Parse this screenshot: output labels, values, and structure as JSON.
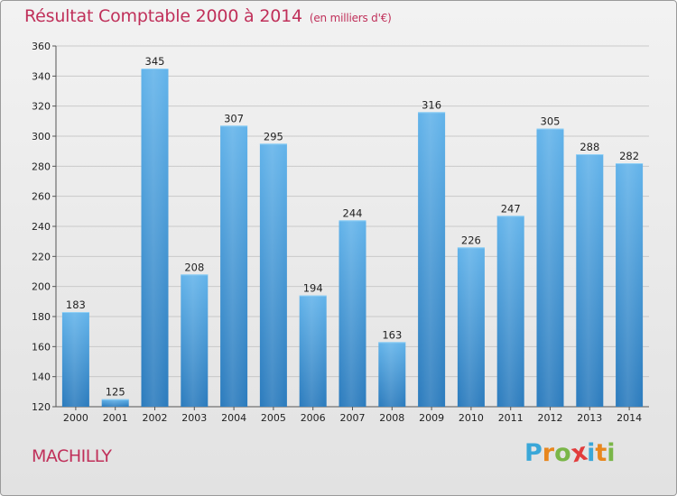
{
  "title": "Résultat Comptable 2000 à 2014",
  "subtitle": "(en milliers d'€)",
  "commune": "MACHILLY",
  "logo": {
    "letters": [
      "P",
      "r",
      "o",
      "x",
      "i",
      "t",
      "i"
    ],
    "colors": [
      "#3aa7d8",
      "#e8871e",
      "#7ab648",
      "#e23c3c",
      "#3aa7d8",
      "#e8871e",
      "#7ab648"
    ]
  },
  "colors": {
    "bar_top": "#62b3ea",
    "bar_bottom": "#2b7bbd",
    "accent": "#c0305a"
  },
  "chart_data": {
    "type": "bar",
    "title": "Résultat Comptable 2000 à 2014",
    "categories": [
      "2000",
      "2001",
      "2002",
      "2003",
      "2004",
      "2005",
      "2006",
      "2007",
      "2008",
      "2009",
      "2010",
      "2011",
      "2012",
      "2013",
      "2014"
    ],
    "values": [
      183,
      125,
      345,
      208,
      307,
      295,
      194,
      244,
      163,
      316,
      226,
      247,
      305,
      288,
      282
    ],
    "ylim": [
      120,
      360
    ],
    "yticks": [
      120,
      140,
      160,
      180,
      200,
      220,
      240,
      260,
      280,
      300,
      320,
      340,
      360
    ],
    "grid": true,
    "legend": "none"
  }
}
